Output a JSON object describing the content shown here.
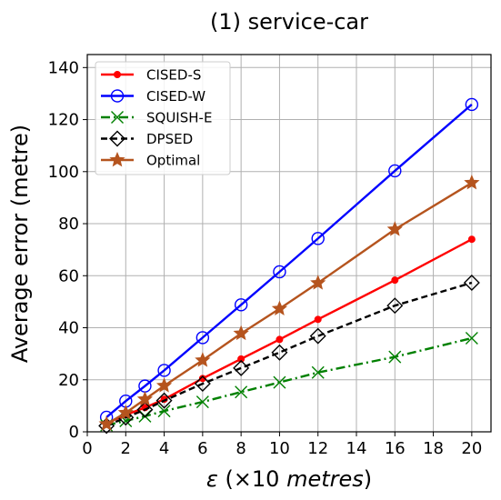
{
  "chart_data": {
    "type": "line",
    "title": "(1) service-car",
    "xlabel": "ε (×10 metres)",
    "ylabel": "Average error (metre)",
    "xlim": [
      0,
      21
    ],
    "ylim": [
      0,
      145
    ],
    "xticks": [
      0,
      2,
      4,
      6,
      8,
      10,
      12,
      14,
      16,
      18,
      20
    ],
    "yticks": [
      0,
      20,
      40,
      60,
      80,
      100,
      120,
      140
    ],
    "grid": true,
    "legend_position": "top-left",
    "x": [
      1,
      2,
      3,
      4,
      6,
      8,
      10,
      12,
      16,
      20
    ],
    "series": [
      {
        "name": "CISED-S",
        "color": "#ff0000",
        "marker": "dot",
        "line": "solid",
        "values": [
          3.3,
          6.5,
          9.3,
          12.5,
          20.5,
          28.0,
          35.5,
          43.2,
          58.3,
          74.0
        ]
      },
      {
        "name": "CISED-W",
        "color": "#0000ff",
        "marker": "circle",
        "line": "solid",
        "values": [
          5.6,
          11.8,
          17.6,
          23.6,
          36.2,
          48.8,
          61.5,
          74.3,
          100.3,
          125.8
        ]
      },
      {
        "name": "SQUISH-E",
        "color": "#008000",
        "marker": "x",
        "line": "dashdot",
        "values": [
          2.5,
          4.2,
          6.0,
          8.0,
          11.5,
          15.3,
          19.0,
          22.8,
          28.8,
          36.0
        ]
      },
      {
        "name": "DPSED",
        "color": "#000000",
        "marker": "diamond",
        "line": "dashed",
        "values": [
          2.3,
          5.5,
          8.5,
          12.0,
          18.5,
          24.5,
          30.5,
          36.8,
          48.5,
          57.3
        ]
      },
      {
        "name": "Optimal",
        "color": "#b5541e",
        "marker": "star",
        "line": "solid",
        "values": [
          3.0,
          7.3,
          12.5,
          17.7,
          27.5,
          37.8,
          47.3,
          57.2,
          77.8,
          95.7
        ]
      }
    ]
  }
}
